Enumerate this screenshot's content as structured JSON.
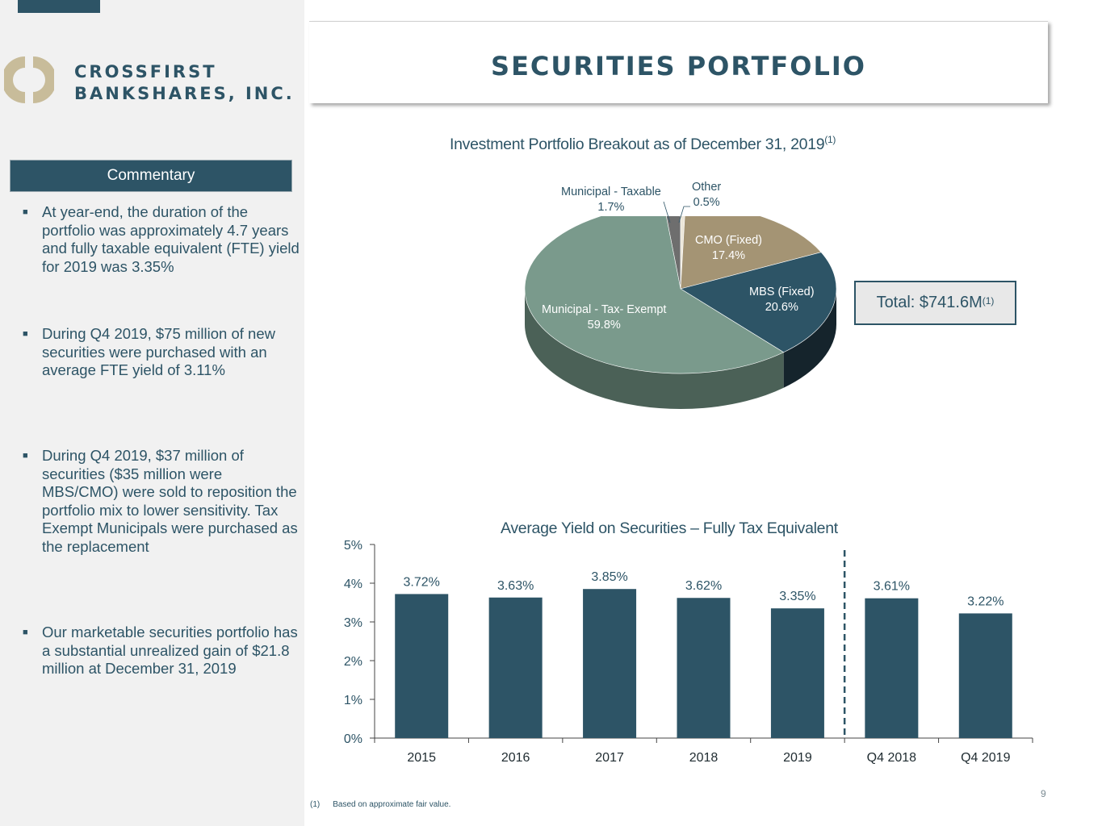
{
  "brand": {
    "line1": "CROSSFIRST",
    "line2": "BANKSHARES, INC."
  },
  "page_title": "SECURITIES PORTFOLIO",
  "commentary": {
    "header": "Commentary",
    "bullets": [
      "At year-end, the duration of the portfolio was approximately 4.7 years and fully taxable equivalent (FTE) yield for 2019 was 3.35%",
      "During Q4 2019, $75 million of new securities were purchased with an average FTE yield of 3.11%",
      "During Q4 2019, $37 million of securities ($35 million were MBS/CMO) were sold to reposition the portfolio mix to lower sensitivity. Tax Exempt Municipals were purchased as the replacement",
      "Our marketable securities portfolio has a substantial unrealized gain of $21.8 million at December 31, 2019"
    ]
  },
  "pie_chart": {
    "title": "Investment Portfolio Breakout as of December 31, 2019",
    "title_sup": "(1)",
    "total_label": "Total: $741.6M",
    "total_sup": "(1)"
  },
  "bar_chart": {
    "title": "Average Yield on Securities – Fully Tax Equivalent"
  },
  "footnote": {
    "number": "(1)",
    "text": "Based on approximate fair value."
  },
  "page_number": "9",
  "colors": {
    "navy": "#2d5466",
    "sage": "#7a9a8c",
    "tan": "#a49474",
    "gray": "#6e6e6e",
    "cream": "#ece6d8",
    "panel": "#f1f1f1",
    "logo_tan": "#c8bc9a"
  },
  "chart_data": [
    {
      "type": "pie",
      "title": "Investment Portfolio Breakout as of December 31, 2019",
      "slices": [
        {
          "name": "Municipal - Taxable",
          "value_label": "1.7%",
          "value": 1.7
        },
        {
          "name": "Other",
          "value_label": "0.5%",
          "value": 0.5
        },
        {
          "name": "CMO (Fixed)",
          "value_label": "17.4%",
          "value": 17.4
        },
        {
          "name": "MBS (Fixed)",
          "value_label": "20.6%",
          "value": 20.6
        },
        {
          "name": "Municipal - Tax- Exempt",
          "value_label": "59.8%",
          "value": 59.8
        }
      ]
    },
    {
      "type": "bar",
      "title": "Average Yield on Securities – Fully Tax Equivalent",
      "categories": [
        "2015",
        "2016",
        "2017",
        "2018",
        "2019",
        "Q4 2018",
        "Q4 2019"
      ],
      "values": [
        3.72,
        3.63,
        3.85,
        3.62,
        3.35,
        3.61,
        3.22
      ],
      "value_labels": [
        "3.72%",
        "3.63%",
        "3.85%",
        "3.62%",
        "3.35%",
        "3.61%",
        "3.22%"
      ],
      "y_ticks": [
        "0%",
        "1%",
        "2%",
        "3%",
        "4%",
        "5%"
      ],
      "ylim": [
        0,
        5
      ],
      "divider_after_category": "2019",
      "grid": false
    }
  ]
}
